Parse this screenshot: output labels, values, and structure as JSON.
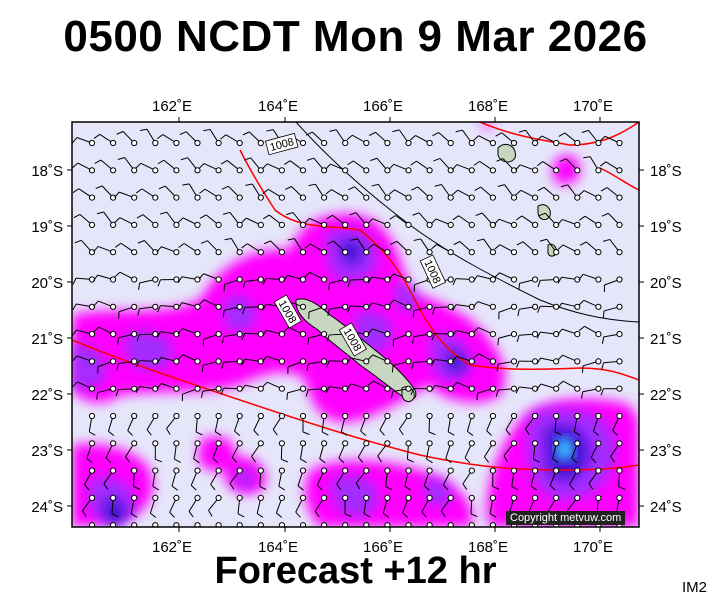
{
  "title": "0500 NCDT Mon 9 Mar 2026",
  "footer": "Forecast +12 hr",
  "code": "IM2",
  "copyright": "Copyright metvuw.com",
  "lon_ticks": [
    "162˚E",
    "164˚E",
    "166˚E",
    "168˚E",
    "170˚E"
  ],
  "lat_ticks": [
    "18˚S",
    "19˚S",
    "20˚S",
    "21˚S",
    "22˚S",
    "23˚S",
    "24˚S"
  ],
  "isobar_labels": [
    "1008",
    "1008",
    "1008",
    "1008"
  ],
  "colors": {
    "ocean": "#e6e6fa",
    "precip_light": "#ff00ff",
    "precip_mid": "#9933ff",
    "precip_heavy": "#3311cc",
    "precip_max": "#33ccff",
    "isobar": "#ff0000",
    "land": "#c8d8c0"
  }
}
